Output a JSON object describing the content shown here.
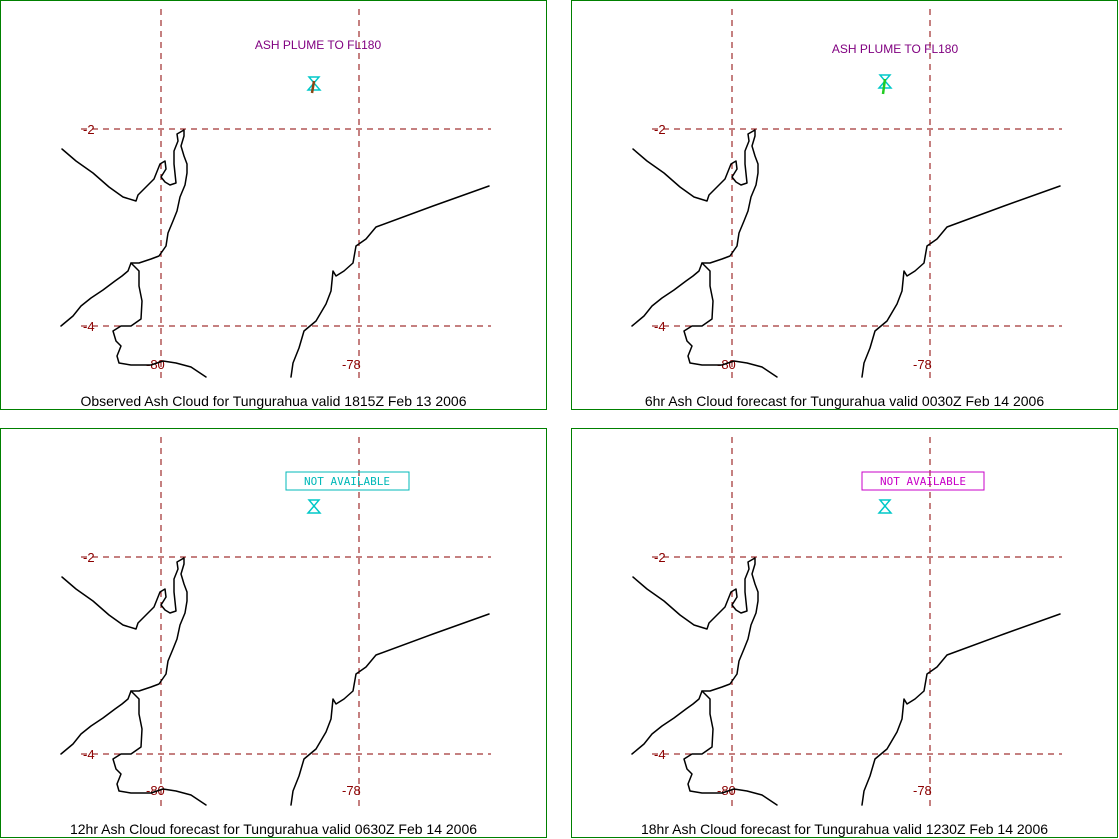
{
  "colors": {
    "frame": "#008000",
    "grid": "#8b0000",
    "plume_label": "#800080",
    "volcano_icon": "#00c8c8",
    "na_cyan": "#00b8b8",
    "na_magenta": "#c800c8",
    "ash_brown": "#8b4513",
    "ash_green": "#22cc22"
  },
  "panels": [
    {
      "caption": "Observed Ash Cloud for Tungurahua valid 1815Z Feb 13 2006",
      "status_label": "ASH PLUME TO FL180",
      "status_type": "plume",
      "plume_color": "#8b4513",
      "lat_labels": [
        "-2",
        "-4"
      ],
      "lon_labels": [
        "-80",
        "-78"
      ]
    },
    {
      "caption": "6hr Ash Cloud forecast for Tungurahua valid 0030Z Feb 14 2006",
      "status_label": "ASH PLUME TO FL180",
      "status_type": "plume",
      "plume_color": "#22cc22",
      "lat_labels": [
        "-2",
        "-4"
      ],
      "lon_labels": [
        "-80",
        "-78"
      ]
    },
    {
      "caption": "12hr Ash Cloud forecast for Tungurahua valid 0630Z Feb 14 2006",
      "status_label": "NOT AVAILABLE",
      "status_type": "na",
      "na_color": "#00b8b8",
      "lat_labels": [
        "-2",
        "-4"
      ],
      "lon_labels": [
        "-80",
        "-78"
      ]
    },
    {
      "caption": "18hr Ash Cloud forecast for Tungurahua valid 1230Z Feb 14 2006",
      "status_label": "NOT AVAILABLE",
      "status_type": "na",
      "na_color": "#c800c8",
      "lat_labels": [
        "-2",
        "-4"
      ],
      "lon_labels": [
        "-80",
        "-78"
      ]
    }
  ]
}
